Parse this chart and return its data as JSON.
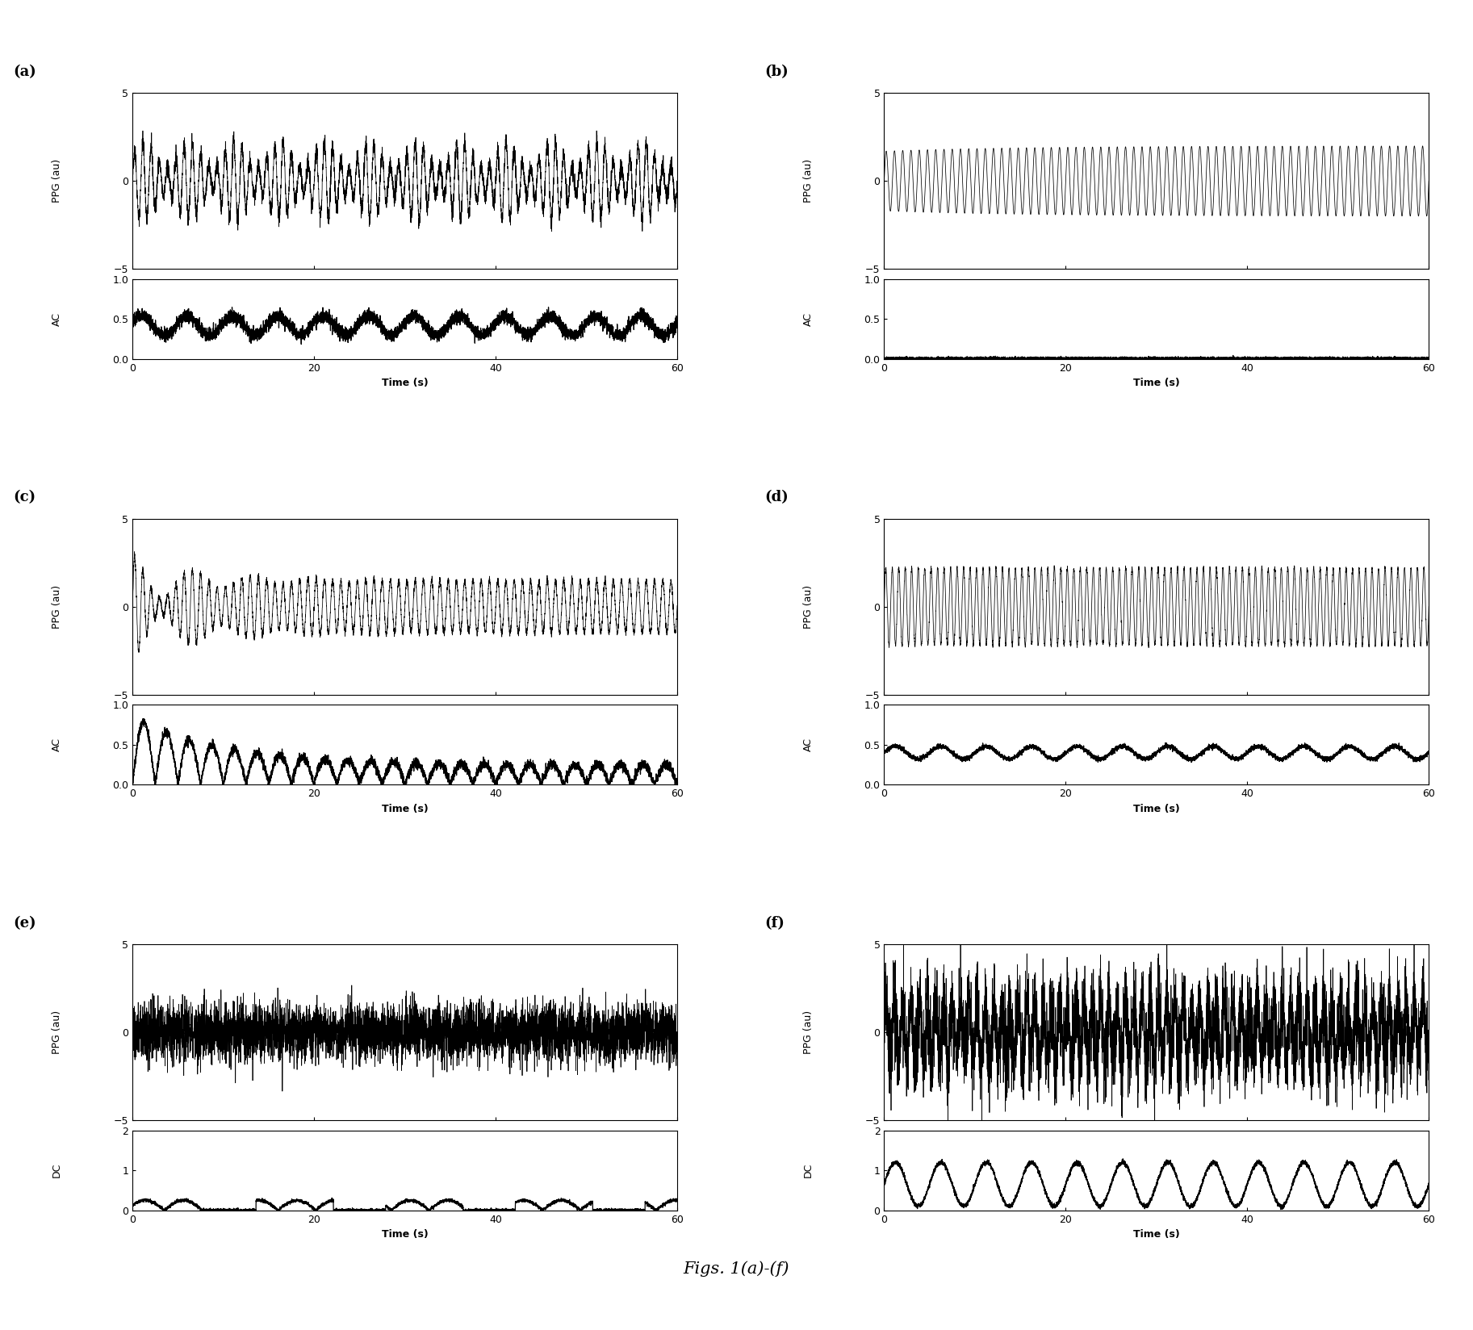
{
  "title": "Figs. 1(a)-(f)",
  "panel_labels": [
    "(a)",
    "(b)",
    "(c)",
    "(d)",
    "(e)",
    "(f)"
  ],
  "time_range": [
    0,
    60
  ],
  "ppg_ylim": [
    -5,
    5
  ],
  "ppg_yticks": [
    -5,
    0,
    5
  ],
  "ac_ylim": [
    0,
    1
  ],
  "ac_yticks": [
    0,
    0.5,
    1
  ],
  "dc_ylim": [
    0,
    2
  ],
  "dc_yticks": [
    0,
    1,
    2
  ],
  "xticks": [
    0,
    20,
    40,
    60
  ],
  "xlabel": "Time (s)",
  "ppg_ylabel": "PPG (au)",
  "ac_ylabel": "AC",
  "dc_ylabel": "DC",
  "bg_color": "#ffffff",
  "line_color": "#000000",
  "seed": 42,
  "cardiac_freq": 1.1,
  "resp_freq": 0.2,
  "n_samples": 6000
}
